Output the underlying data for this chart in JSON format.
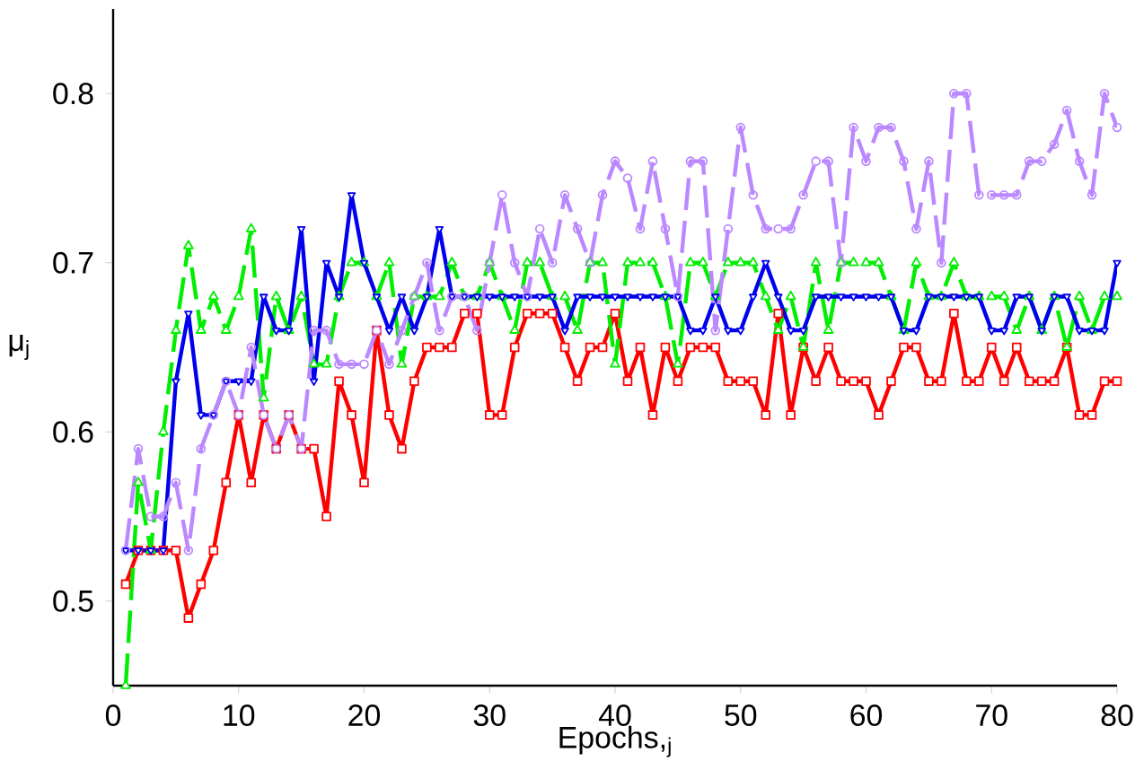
{
  "chart_data": {
    "type": "line",
    "xlabel": "Epochs,$_{j}$",
    "ylabel": "μ$_{j}$",
    "xlim": [
      0,
      80
    ],
    "ylim": [
      0.45,
      0.85
    ],
    "xticks": [
      0,
      10,
      20,
      30,
      40,
      50,
      60,
      70,
      80
    ],
    "yticks": [
      0.5,
      0.6,
      0.7,
      0.8
    ],
    "grid": false,
    "x": [
      1,
      2,
      3,
      4,
      5,
      6,
      7,
      8,
      9,
      10,
      11,
      12,
      13,
      14,
      15,
      16,
      17,
      18,
      19,
      20,
      21,
      22,
      23,
      24,
      25,
      26,
      27,
      28,
      29,
      30,
      31,
      32,
      33,
      34,
      35,
      36,
      37,
      38,
      39,
      40,
      41,
      42,
      43,
      44,
      45,
      46,
      47,
      48,
      49,
      50,
      51,
      52,
      53,
      54,
      55,
      56,
      57,
      58,
      59,
      60,
      61,
      62,
      63,
      64,
      65,
      66,
      67,
      68,
      69,
      70,
      71,
      72,
      73,
      74,
      75,
      76,
      77,
      78,
      79,
      80
    ],
    "series": [
      {
        "color": "#ff0000",
        "marker": "square",
        "line_style": "solid",
        "values": [
          0.51,
          0.53,
          0.53,
          0.53,
          0.53,
          0.49,
          0.51,
          0.53,
          0.57,
          0.61,
          0.57,
          0.61,
          0.59,
          0.61,
          0.59,
          0.59,
          0.55,
          0.63,
          0.61,
          0.57,
          0.66,
          0.61,
          0.59,
          0.63,
          0.65,
          0.65,
          0.65,
          0.67,
          0.67,
          0.61,
          0.61,
          0.65,
          0.67,
          0.67,
          0.67,
          0.65,
          0.63,
          0.65,
          0.65,
          0.67,
          0.63,
          0.65,
          0.61,
          0.65,
          0.63,
          0.65,
          0.65,
          0.65,
          0.63,
          0.63,
          0.63,
          0.61,
          0.67,
          0.61,
          0.65,
          0.63,
          0.65,
          0.63,
          0.63,
          0.63,
          0.61,
          0.63,
          0.65,
          0.65,
          0.63,
          0.63,
          0.67,
          0.63,
          0.63,
          0.65,
          0.63,
          0.65,
          0.63,
          0.63,
          0.63,
          0.65,
          0.61,
          0.61,
          0.63,
          0.63
        ]
      },
      {
        "color": "#00ee00",
        "marker": "triangle",
        "line_style": "dashed",
        "values": [
          0.45,
          0.57,
          0.53,
          0.6,
          0.66,
          0.71,
          0.66,
          0.68,
          0.66,
          0.68,
          0.72,
          0.62,
          0.68,
          0.66,
          0.68,
          0.64,
          0.64,
          0.68,
          0.7,
          0.7,
          0.68,
          0.7,
          0.64,
          0.68,
          0.68,
          0.68,
          0.7,
          0.68,
          0.68,
          0.7,
          0.68,
          0.66,
          0.7,
          0.7,
          0.68,
          0.68,
          0.66,
          0.7,
          0.7,
          0.64,
          0.7,
          0.7,
          0.7,
          0.68,
          0.64,
          0.7,
          0.7,
          0.68,
          0.7,
          0.7,
          0.7,
          0.68,
          0.66,
          0.68,
          0.65,
          0.7,
          0.66,
          0.7,
          0.7,
          0.7,
          0.7,
          0.68,
          0.66,
          0.7,
          0.68,
          0.68,
          0.7,
          0.68,
          0.68,
          0.68,
          0.68,
          0.66,
          0.68,
          0.66,
          0.68,
          0.65,
          0.68,
          0.66,
          0.68,
          0.68
        ]
      },
      {
        "color": "#0000ee",
        "marker": "triangle down",
        "line_style": "solid",
        "values": [
          0.53,
          0.53,
          0.53,
          0.53,
          0.63,
          0.67,
          0.61,
          0.61,
          0.63,
          0.63,
          0.63,
          0.68,
          0.66,
          0.66,
          0.72,
          0.63,
          0.7,
          0.68,
          0.74,
          0.7,
          0.68,
          0.66,
          0.68,
          0.66,
          0.68,
          0.72,
          0.68,
          0.68,
          0.68,
          0.68,
          0.68,
          0.68,
          0.68,
          0.68,
          0.68,
          0.66,
          0.68,
          0.68,
          0.68,
          0.68,
          0.68,
          0.68,
          0.68,
          0.68,
          0.68,
          0.66,
          0.66,
          0.68,
          0.66,
          0.66,
          0.68,
          0.7,
          0.68,
          0.66,
          0.66,
          0.68,
          0.68,
          0.68,
          0.68,
          0.68,
          0.68,
          0.68,
          0.66,
          0.66,
          0.68,
          0.68,
          0.68,
          0.68,
          0.68,
          0.66,
          0.66,
          0.68,
          0.68,
          0.66,
          0.68,
          0.68,
          0.66,
          0.66,
          0.66,
          0.7
        ]
      },
      {
        "color": "#bb88ff",
        "marker": "circle",
        "line_style": "dashed",
        "values": [
          0.53,
          0.59,
          0.55,
          0.55,
          0.57,
          0.53,
          0.59,
          0.61,
          0.63,
          0.61,
          0.65,
          0.61,
          0.59,
          0.61,
          0.59,
          0.66,
          0.66,
          0.64,
          0.64,
          0.64,
          0.66,
          0.64,
          0.66,
          0.68,
          0.7,
          0.66,
          0.68,
          0.68,
          0.66,
          0.7,
          0.74,
          0.7,
          0.68,
          0.72,
          0.7,
          0.74,
          0.72,
          0.7,
          0.74,
          0.76,
          0.75,
          0.72,
          0.76,
          0.72,
          0.68,
          0.76,
          0.76,
          0.66,
          0.72,
          0.78,
          0.74,
          0.72,
          0.72,
          0.72,
          0.74,
          0.76,
          0.76,
          0.7,
          0.78,
          0.76,
          0.78,
          0.78,
          0.76,
          0.72,
          0.76,
          0.7,
          0.8,
          0.8,
          0.74,
          0.74,
          0.74,
          0.74,
          0.76,
          0.76,
          0.77,
          0.79,
          0.76,
          0.74,
          0.8,
          0.78
        ]
      }
    ]
  }
}
